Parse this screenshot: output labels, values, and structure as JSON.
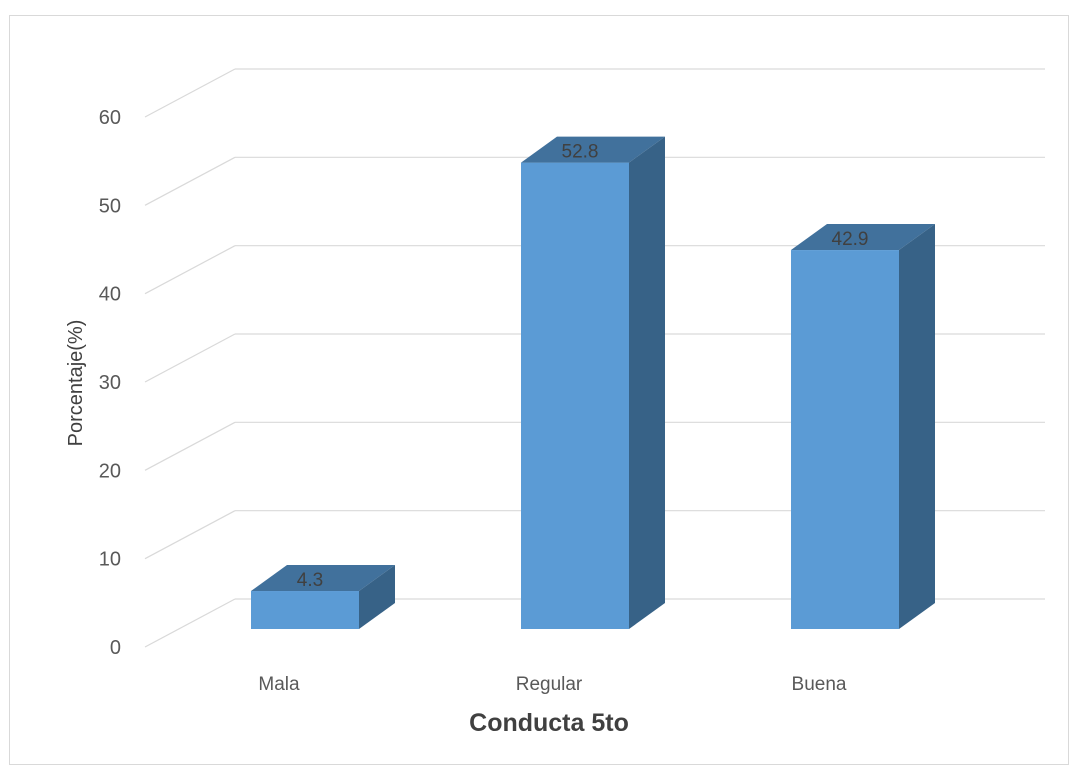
{
  "chart_data": {
    "type": "bar",
    "categories": [
      "Mala",
      "Regular",
      "Buena"
    ],
    "series": [
      {
        "values": [
          4.3,
          52.8,
          42.9
        ]
      }
    ],
    "data_labels": [
      "4.3",
      "52.8",
      "42.9"
    ],
    "title": "",
    "xlabel": "Conducta 5to",
    "ylabel": "Porcentaje(%)",
    "ylim": [
      0,
      60
    ],
    "yticks": [
      "0",
      "10",
      "20",
      "30",
      "40",
      "50",
      "60"
    ],
    "grid": true,
    "three_d": true,
    "colors": {
      "bar_front": "#5b9bd5",
      "bar_top": "#41719c",
      "bar_side": "#376287",
      "grid": "#d9d9d9",
      "tick_text": "#595959",
      "axis_title": "#404040",
      "data_label": "#404040"
    }
  }
}
